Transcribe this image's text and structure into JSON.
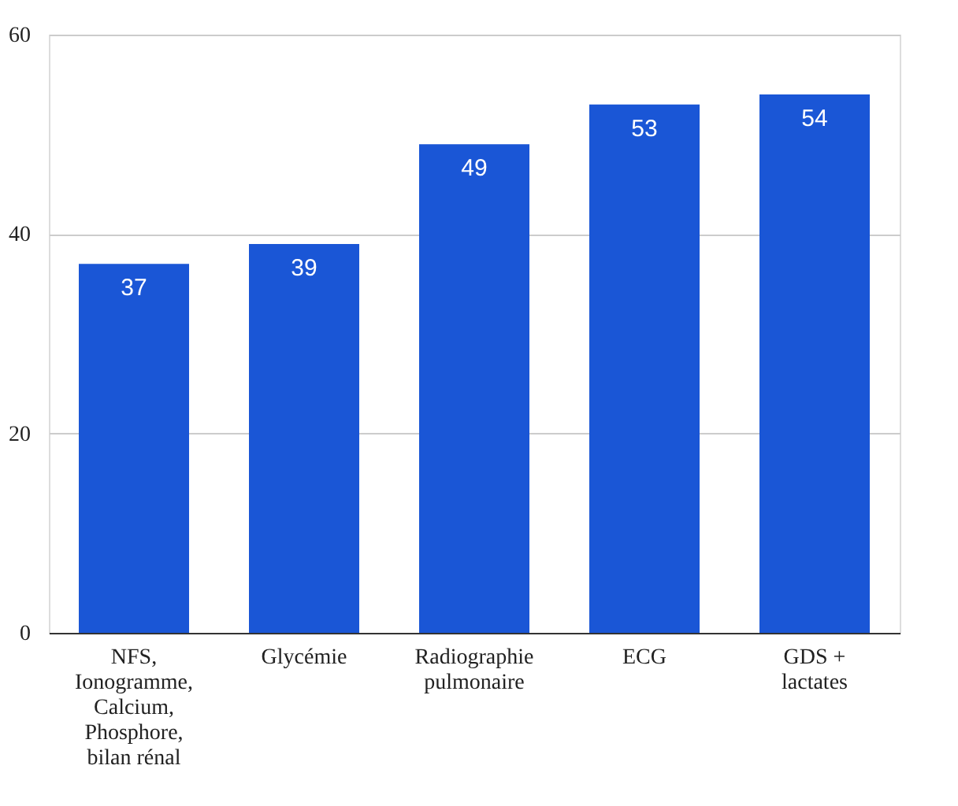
{
  "chart_data": {
    "type": "bar",
    "categories": [
      "NFS, Ionogramme, Calcium, Phosphore, bilan rénal",
      "Glycémie",
      "Radiographie pulmonaire",
      "ECG",
      "GDS + lactates"
    ],
    "values": [
      37,
      39,
      49,
      53,
      54
    ],
    "color": "#1a56d6",
    "ylim": [
      0,
      60
    ],
    "yticks": [
      0,
      20,
      40,
      60
    ],
    "grid": "y",
    "data_labels": true
  }
}
